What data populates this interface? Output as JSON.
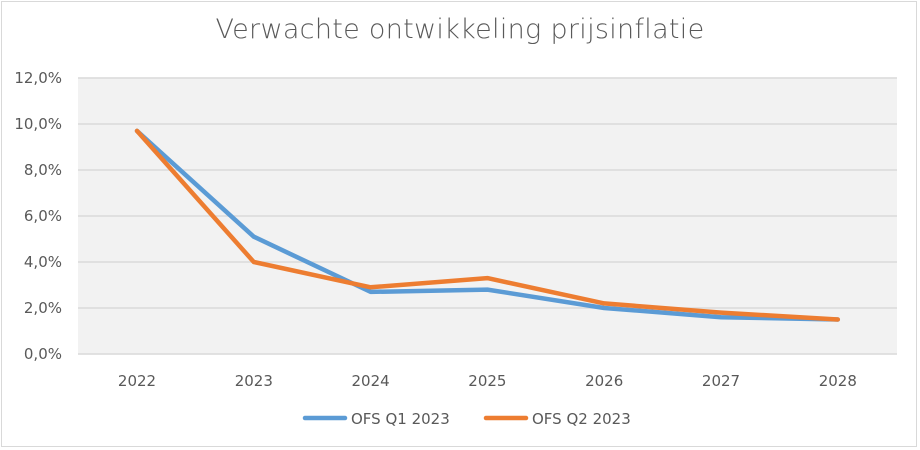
{
  "chart_data": {
    "type": "line",
    "title": "Verwachte ontwikkeling prijsinflatie",
    "categories": [
      "2022",
      "2023",
      "2024",
      "2025",
      "2026",
      "2027",
      "2028"
    ],
    "series": [
      {
        "name": "OFS Q1 2023",
        "color": "#5b9bd5",
        "values": [
          9.7,
          5.1,
          2.7,
          2.8,
          2.0,
          1.6,
          1.5
        ]
      },
      {
        "name": "OFS Q2 2023",
        "color": "#ed7d31",
        "values": [
          9.7,
          4.0,
          2.9,
          3.3,
          2.2,
          1.8,
          1.5
        ]
      }
    ],
    "yticks": [
      "0,0%",
      "2,0%",
      "4,0%",
      "6,0%",
      "8,0%",
      "10,0%",
      "12,0%"
    ],
    "ylim": [
      0,
      12
    ],
    "xlabel": "",
    "ylabel": "",
    "grid": true,
    "plot_background": "#f2f2f2",
    "legend": "bottom"
  }
}
